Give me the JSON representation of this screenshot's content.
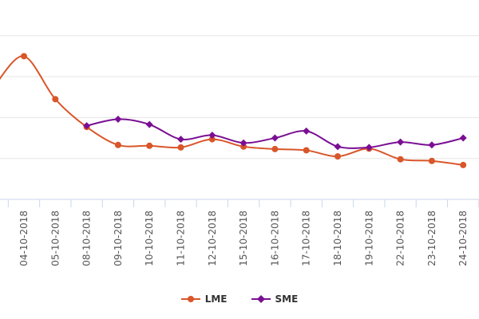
{
  "chart_data": {
    "type": "line",
    "categories": [
      "04-10-2018",
      "05-10-2018",
      "08-10-2018",
      "09-10-2018",
      "10-10-2018",
      "11-10-2018",
      "12-10-2018",
      "15-10-2018",
      "16-10-2018",
      "17-10-2018",
      "18-10-2018",
      "19-10-2018",
      "22-10-2018",
      "23-10-2018",
      "24-10-2018"
    ],
    "series": [
      {
        "name": "LME",
        "color": "#d9562a",
        "values": [
          3.5,
          2.45,
          1.77,
          1.33,
          1.31,
          1.27,
          1.47,
          1.29,
          1.23,
          1.2,
          1.05,
          1.24,
          0.98,
          0.94,
          0.84
        ]
      },
      {
        "name": "SME",
        "color": "#7a0f93",
        "values": [
          null,
          null,
          1.8,
          1.96,
          1.83,
          1.47,
          1.57,
          1.38,
          1.5,
          1.67,
          1.29,
          1.27,
          1.4,
          1.33,
          1.5
        ]
      }
    ],
    "grid": true,
    "legend": "bottom"
  }
}
